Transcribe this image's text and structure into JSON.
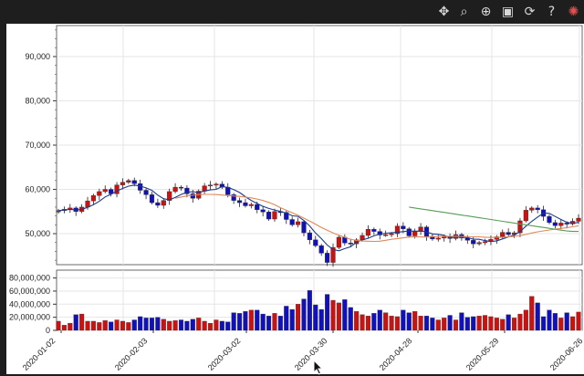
{
  "toolbar": {
    "tools": [
      {
        "name": "pan-tool",
        "icon": "move-icon",
        "glyph": "✥"
      },
      {
        "name": "box-zoom-tool",
        "icon": "box-zoom-icon",
        "glyph": "⌕"
      },
      {
        "name": "wheel-zoom-tool",
        "icon": "wheel-zoom-icon",
        "glyph": "⊕"
      },
      {
        "name": "save-tool",
        "icon": "save-icon",
        "glyph": "▣"
      },
      {
        "name": "reset-tool",
        "icon": "reset-icon",
        "glyph": "⟳"
      },
      {
        "name": "help-tool",
        "icon": "help-icon",
        "glyph": "?"
      },
      {
        "name": "bokeh-logo",
        "icon": "bokeh-logo-icon",
        "glyph": "✺"
      }
    ]
  },
  "colors": {
    "up": "#cc1111",
    "down": "#1111bb",
    "ma5": "#1a3a8a",
    "ma20": "#e08858",
    "ma60": "#5a9a5a",
    "grid": "#e6e6e6"
  },
  "chart_data": [
    {
      "type": "candlestick",
      "xlabels": [
        "2020-01-02",
        "2020-02-03",
        "2020-03-02",
        "2020-03-30",
        "2020-04-28",
        "2020-05-29",
        "2020-06-26"
      ],
      "yticks": [
        50000,
        60000,
        70000,
        80000,
        90000
      ],
      "ytick_labels": [
        "50,000",
        "60,000",
        "70,000",
        "80,000",
        "90,000"
      ],
      "ylim": [
        43000,
        97000
      ],
      "grid": true,
      "close": [
        55200,
        55500,
        55800,
        55000,
        56000,
        57400,
        58600,
        59500,
        60000,
        59000,
        61000,
        61600,
        62000,
        61300,
        59800,
        58800,
        57000,
        56400,
        57500,
        59500,
        60500,
        60300,
        59000,
        58000,
        59600,
        60800,
        61000,
        61200,
        60500,
        58800,
        57500,
        57000,
        56300,
        56600,
        55400,
        54900,
        53300,
        55000,
        54800,
        53200,
        52000,
        52700,
        50200,
        48600,
        47300,
        45600,
        43500,
        46900,
        49200,
        47900,
        47700,
        48600,
        49600,
        51000,
        50500,
        49700,
        49800,
        50000,
        51700,
        51100,
        49500,
        50500,
        51500,
        49400,
        48800,
        49000,
        49400,
        48900,
        49800,
        49000,
        48500,
        47700,
        48000,
        48200,
        48700,
        49300,
        50300,
        49800,
        50200,
        52900,
        55300,
        55800,
        55400,
        53900,
        52500,
        51800,
        52400,
        52200,
        52800,
        53500
      ],
      "ma_series": [
        {
          "key": "ma5",
          "values": [
            55200,
            55350,
            55500,
            55375,
            55500,
            55940,
            56560,
            57300,
            58300,
            58900,
            59620,
            60220,
            60720,
            60980,
            60740,
            60340,
            59780,
            58700,
            57900,
            57640,
            58180,
            58840,
            59360,
            59460,
            59280,
            59640,
            59880,
            60000,
            60620,
            60460,
            59960,
            59300,
            58360,
            57500,
            56800,
            56180,
            55700,
            55340,
            55040,
            54640,
            54040,
            53900,
            52980,
            51740,
            50160,
            48880,
            47440,
            46420,
            46140,
            46620,
            47040,
            48060,
            48600,
            48960,
            49520,
            49900,
            50120,
            50200,
            50340,
            50460,
            50600,
            50560,
            50580,
            50400,
            49940,
            49840,
            49640,
            49120,
            49180,
            49220,
            49120,
            48760,
            48720,
            48440,
            48220,
            48380,
            48820,
            49260,
            49660,
            50500,
            51700,
            52800,
            53760,
            54660,
            54580,
            53880,
            53200,
            52560,
            52340,
            52540
          ]
        },
        {
          "key": "ma20",
          "start": 20,
          "values": [
            58000,
            58280,
            58540,
            58690,
            58840,
            58880,
            58880,
            58820,
            58720,
            58620,
            58500,
            58420,
            58280,
            58080,
            57820,
            57480,
            57060,
            56520,
            55860,
            55280,
            54720,
            54150,
            53500,
            52840,
            52160,
            51400,
            50760,
            50180,
            49660,
            49190,
            48730,
            48460,
            48340,
            48300,
            48250,
            48300,
            48500,
            48730,
            48900,
            49050,
            49220,
            49310,
            49260,
            49220,
            49290,
            49350,
            49420,
            49410,
            49400,
            49370,
            49330,
            49290,
            49280,
            49200,
            49150,
            49170,
            49200,
            49260,
            49390,
            49550,
            49830,
            50150,
            50420,
            50630,
            50830,
            51020,
            51180,
            51370,
            51550,
            51780
          ]
        },
        {
          "key": "ma60",
          "start": 60,
          "values": [
            56000,
            55800,
            55600,
            55400,
            55200,
            55000,
            54800,
            54600,
            54400,
            54200,
            54000,
            53800,
            53600,
            53400,
            53200,
            53000,
            52800,
            52600,
            52400,
            52200,
            52000,
            51800,
            51600,
            51400,
            51200,
            51000,
            50800,
            50600,
            50500,
            50500
          ]
        }
      ]
    },
    {
      "type": "bar",
      "name": "volume",
      "xlabels": [
        "2020-01-02",
        "2020-02-03",
        "2020-03-02",
        "2020-03-30",
        "2020-04-28",
        "2020-05-29",
        "2020-06-26"
      ],
      "yticks": [
        0,
        20000000,
        40000000,
        60000000,
        80000000
      ],
      "ytick_labels": [
        "0",
        "20,000,000",
        "40,000,000",
        "60,000,000",
        "80,000,000"
      ],
      "ylim": [
        0,
        92000000
      ],
      "grid": true,
      "values": [
        14000000,
        8000000,
        11000000,
        24000000,
        25000000,
        14000000,
        14000000,
        12000000,
        15000000,
        13000000,
        16000000,
        14000000,
        12000000,
        16000000,
        21000000,
        19000000,
        19000000,
        20000000,
        17000000,
        14000000,
        15000000,
        16000000,
        14000000,
        17000000,
        19000000,
        14000000,
        11000000,
        16000000,
        14000000,
        13000000,
        27000000,
        26000000,
        29000000,
        31000000,
        31000000,
        25000000,
        22000000,
        26000000,
        22000000,
        37000000,
        32000000,
        40000000,
        48000000,
        61000000,
        39000000,
        32000000,
        55000000,
        46000000,
        42000000,
        47000000,
        35000000,
        29000000,
        24000000,
        22000000,
        26000000,
        31000000,
        27000000,
        22000000,
        21000000,
        31000000,
        27000000,
        29000000,
        22000000,
        22000000,
        19000000,
        16000000,
        19000000,
        23000000,
        16000000,
        27000000,
        20000000,
        21000000,
        22000000,
        23000000,
        21000000,
        19000000,
        17000000,
        24000000,
        19000000,
        25000000,
        31000000,
        52000000,
        42000000,
        21000000,
        31000000,
        26000000,
        19000000,
        27000000,
        21000000,
        28000000
      ]
    }
  ]
}
